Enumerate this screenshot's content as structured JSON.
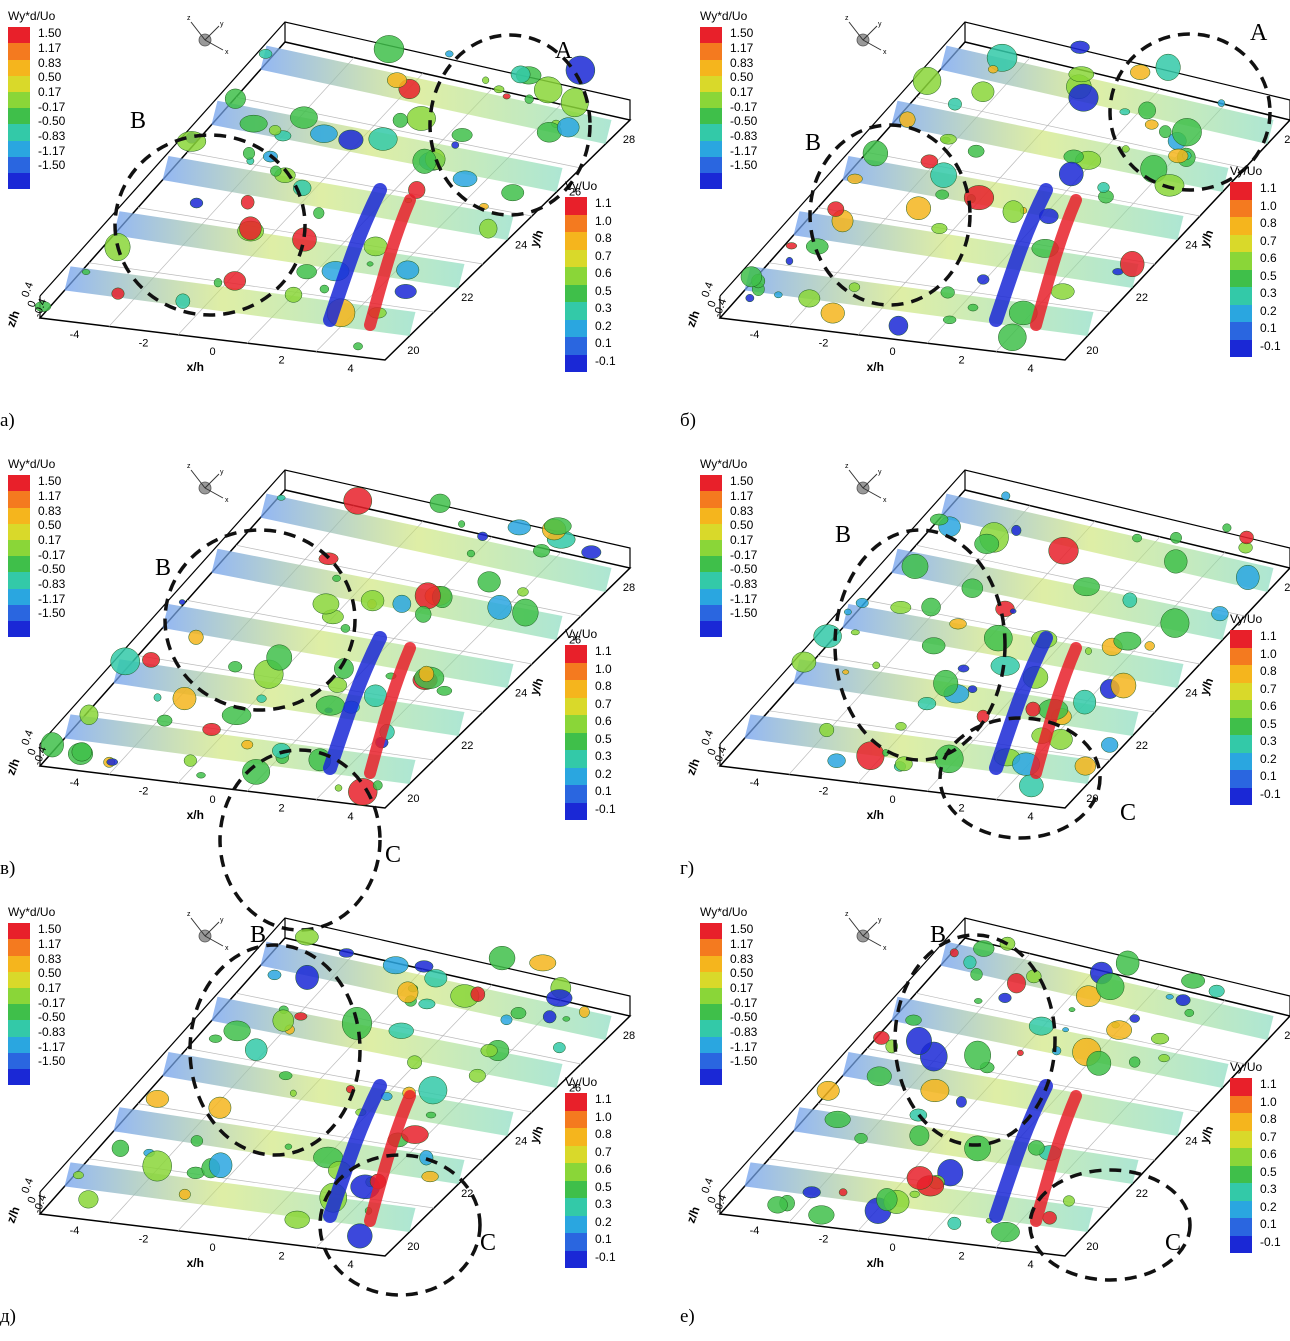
{
  "legend_w": {
    "title": "Wy*d/Uo",
    "values": [
      "1.50",
      "1.17",
      "0.83",
      "0.50",
      "0.17",
      "-0.17",
      "-0.50",
      "-0.83",
      "-1.17",
      "-1.50"
    ],
    "colors": [
      "#e8202a",
      "#f47a1f",
      "#f5b51d",
      "#d9d92a",
      "#8ad638",
      "#3fbf4a",
      "#33c9a8",
      "#2aa6e0",
      "#2a66e0",
      "#1a28d6"
    ]
  },
  "legend_v": {
    "title": "Vy/Uo",
    "values_full": [
      "1.1",
      "1.0",
      "0.8",
      "0.7",
      "0.6",
      "0.5",
      "0.3",
      "0.2",
      "0.1",
      "-0.1"
    ],
    "values_cut": [
      "1.1",
      "1.0",
      "0.8",
      "0.7",
      "0.6",
      "0.5",
      "0.3",
      "0.2",
      "0.1",
      "-0.1"
    ],
    "colors": [
      "#e8202a",
      "#f47a1f",
      "#f5b51d",
      "#d9d92a",
      "#8ad638",
      "#3fbf4a",
      "#33c9a8",
      "#2aa6e0",
      "#2a66e0",
      "#1a28d6"
    ]
  },
  "axes": {
    "x_title": "x/h",
    "y_title": "y/h",
    "z_title": "z/h",
    "x_ticks": [
      "-4",
      "-2",
      "0",
      "2",
      "4"
    ],
    "y_ticks": [
      "20",
      "22",
      "24",
      "26",
      "28"
    ],
    "z_ticks": [
      "0.4",
      "0",
      "-0.4"
    ],
    "triad": {
      "x": "x",
      "y": "y",
      "z": "z"
    }
  },
  "panels": [
    {
      "label": "а)",
      "regions": [
        "A",
        "B"
      ]
    },
    {
      "label": "б)",
      "regions": [
        "A",
        "B"
      ]
    },
    {
      "label": "в)",
      "regions": [
        "B",
        "C"
      ]
    },
    {
      "label": "г)",
      "regions": [
        "B",
        "C"
      ]
    },
    {
      "label": "д)",
      "regions": [
        "B",
        "C"
      ]
    },
    {
      "label": "е)",
      "regions": [
        "B",
        "C"
      ]
    }
  ],
  "colors": {
    "box": "#000000",
    "plane": "#9ec9ee",
    "ellipse": "#111111"
  }
}
